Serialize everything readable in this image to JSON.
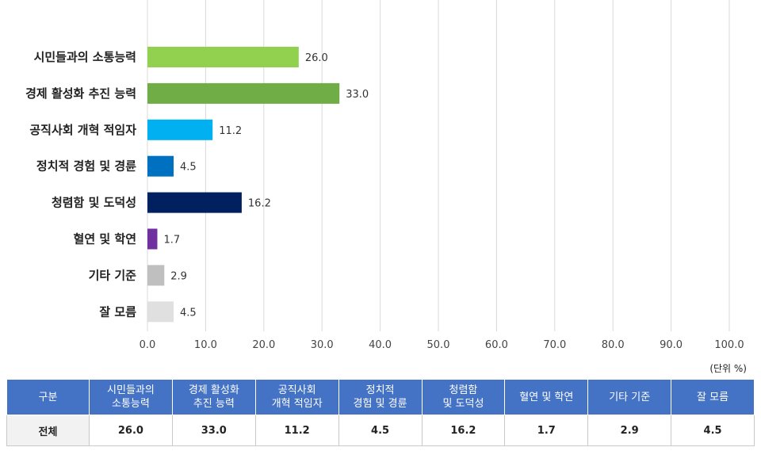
{
  "chart_data": {
    "type": "bar",
    "orientation": "horizontal",
    "categories": [
      "시민들과의 소통능력",
      "경제 활성화 추진 능력",
      "공직사회 개혁 적임자",
      "정치적 경험 및 경륜",
      "청렴함 및 도덕성",
      "혈연 및 학연",
      "기타 기준",
      "잘 모름"
    ],
    "values": [
      26.0,
      33.0,
      11.2,
      4.5,
      16.2,
      1.7,
      2.9,
      4.5
    ],
    "value_labels": [
      "26.0",
      "33.0",
      "11.2",
      "4.5",
      "16.2",
      "1.7",
      "2.9",
      "4.5"
    ],
    "colors": [
      "#92d050",
      "#70ad47",
      "#00b0f0",
      "#0070c0",
      "#002060",
      "#7030a0",
      "#bfbfbf",
      "#e0e0e0"
    ],
    "xlim": [
      0,
      100
    ],
    "x_ticks": [
      "0.0",
      "10.0",
      "20.0",
      "30.0",
      "40.0",
      "50.0",
      "60.0",
      "70.0",
      "80.0",
      "90.0",
      "100.0"
    ],
    "grid": true,
    "legend": "none"
  },
  "unit_note": "(단위 %)",
  "table": {
    "header_label": "구분",
    "columns": [
      "시민들과의\n소통능력",
      "경제 활성화\n추진 능력",
      "공직사회\n개혁 적임자",
      "정치적\n경험 및 경륜",
      "청렴함\n및 도덕성",
      "혈연 및 학연",
      "기타 기준",
      "잘 모름"
    ],
    "row_label": "전체",
    "values": [
      "26.0",
      "33.0",
      "11.2",
      "4.5",
      "16.2",
      "1.7",
      "2.9",
      "4.5"
    ]
  }
}
